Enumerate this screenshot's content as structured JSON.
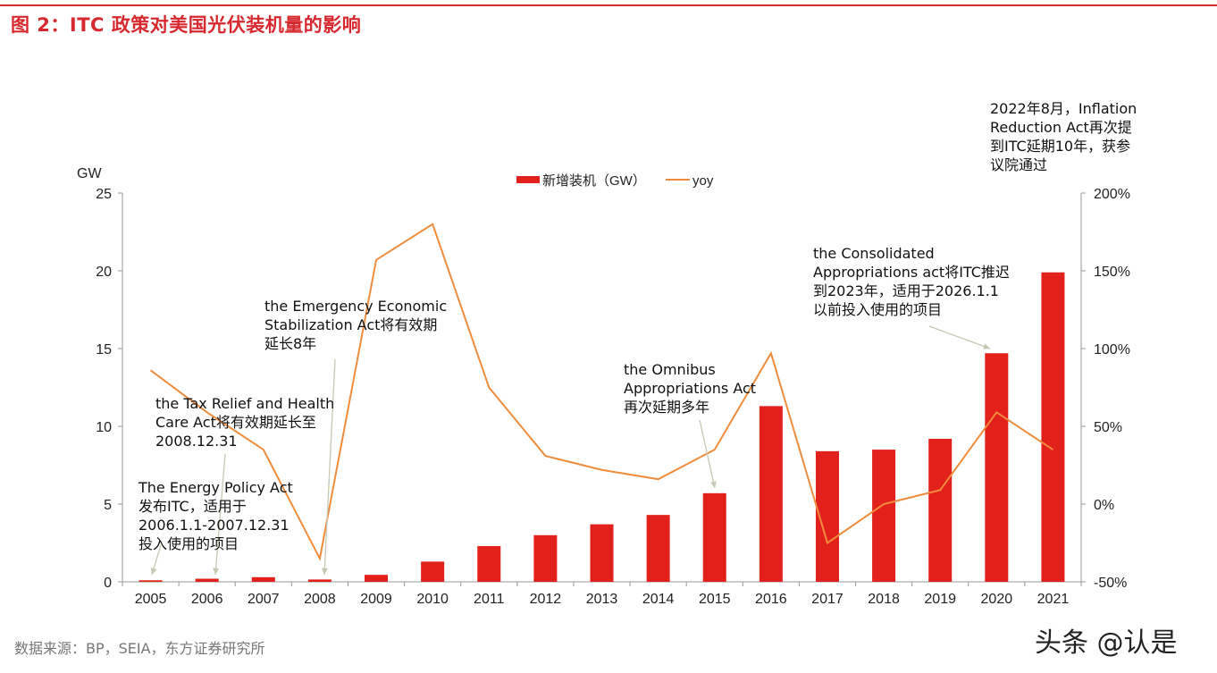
{
  "title": "图 2：ITC 政策对美国光伏装机量的影响",
  "source": "数据来源：BP，SEIA，东方证券研究所",
  "watermark": "头条 @认是",
  "chart_data": {
    "type": "bar+line",
    "title": "",
    "left_axis": {
      "label": "GW",
      "range": [
        0,
        25
      ],
      "ticks": [
        "0",
        "5",
        "10",
        "15",
        "20",
        "25"
      ]
    },
    "right_axis": {
      "range": [
        -50,
        200
      ],
      "ticks": [
        "-50%",
        "0%",
        "50%",
        "100%",
        "150%",
        "200%"
      ]
    },
    "categories": [
      "2005",
      "2006",
      "2007",
      "2008",
      "2009",
      "2010",
      "2011",
      "2012",
      "2013",
      "2014",
      "2015",
      "2016",
      "2017",
      "2018",
      "2019",
      "2020",
      "2021"
    ],
    "series": [
      {
        "name": "新增装机（GW）",
        "type": "bar",
        "axis": "left",
        "color": "#e2201c",
        "values": [
          0.1,
          0.2,
          0.3,
          0.15,
          0.45,
          1.3,
          2.3,
          3.0,
          3.7,
          4.3,
          5.7,
          11.3,
          8.4,
          8.5,
          9.2,
          14.7,
          19.9
        ]
      },
      {
        "name": "yoy",
        "type": "line",
        "axis": "right",
        "color": "#f08c3c",
        "values": [
          86,
          59,
          35,
          -35,
          157,
          180,
          75,
          31,
          22,
          16,
          35,
          97,
          -25,
          0,
          9,
          59,
          35
        ]
      }
    ],
    "legend": "top-center",
    "grid": false,
    "annotations": [
      {
        "text": "The Energy Policy Act\n发布ITC，适用于\n2006.1.1-2007.12.31\n投入使用的项目",
        "points_to": "2005"
      },
      {
        "text": "the Tax Relief and Health\nCare Act将有效期延长至\n2008.12.31",
        "points_to": "2006"
      },
      {
        "text": "the Emergency Economic\nStabilization Act将有效期\n延长8年",
        "points_to": "2008"
      },
      {
        "text": "the Omnibus\nAppropriations Act\n再次延期多年",
        "points_to": "2015"
      },
      {
        "text": "the Consolidated\nAppropriations act将ITC推迟\n到2023年，适用于2026.1.1\n以前投入使用的项目",
        "points_to": "2020"
      },
      {
        "text": "2022年8月，Inflation\nReduction Act再次提\n到ITC延期10年，获参\n议院通过",
        "points_to": ""
      }
    ]
  }
}
